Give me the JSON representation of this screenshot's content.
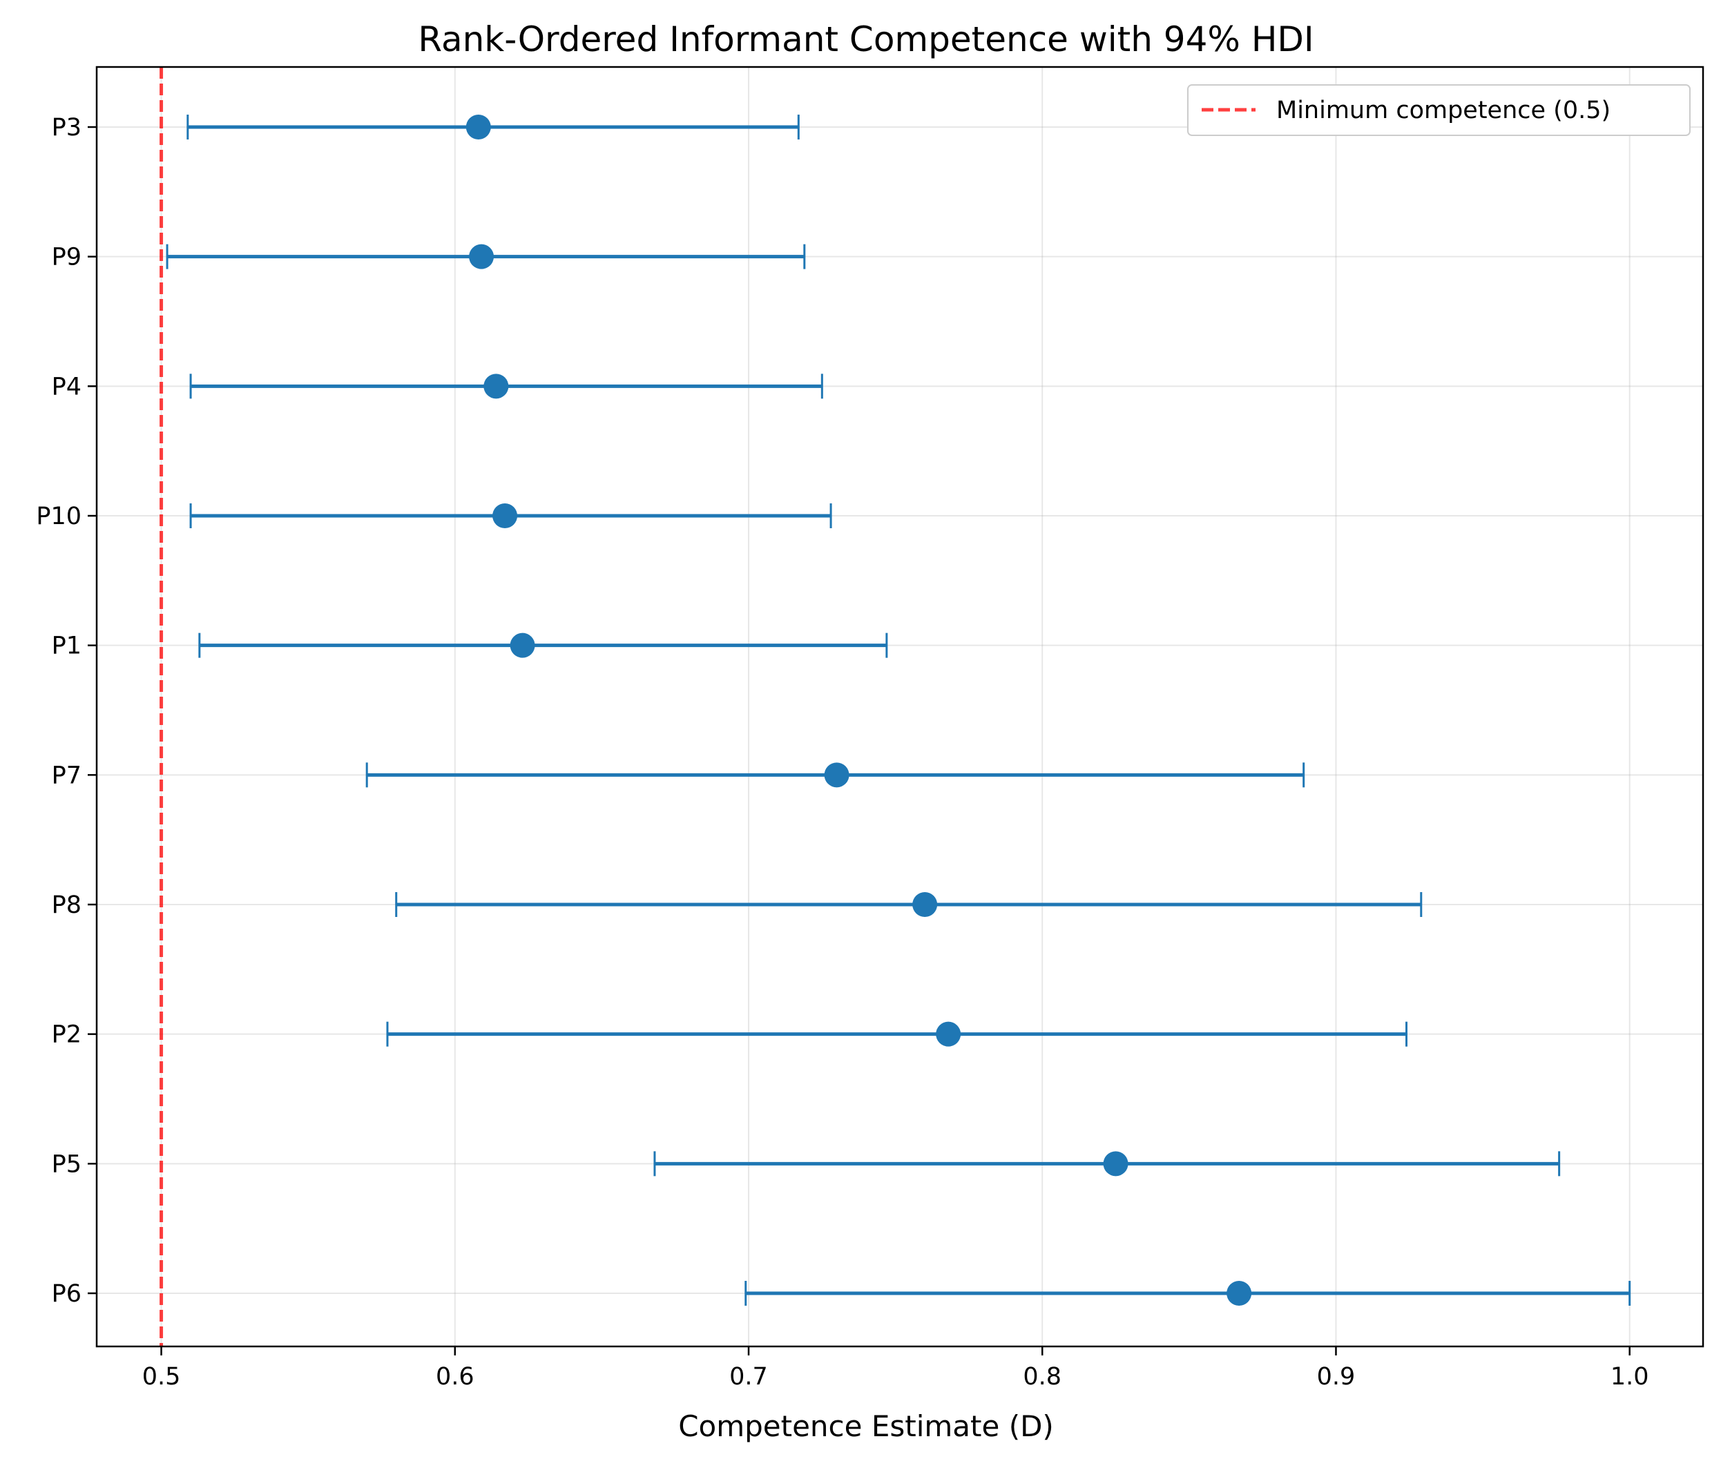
{
  "chart_data": {
    "type": "errorbar",
    "orientation": "horizontal",
    "title": "Rank-Ordered Informant Competence with 94% HDI",
    "xlabel": "Competence Estimate (D)",
    "ylabel": "",
    "xlim": [
      0.478,
      1.025
    ],
    "xticks": [
      0.5,
      0.6,
      0.7,
      0.8,
      0.9,
      1.0
    ],
    "xtick_labels": [
      "0.5",
      "0.6",
      "0.7",
      "0.8",
      "0.9",
      "1.0"
    ],
    "grid": true,
    "legend_position": "top-right",
    "series": [
      {
        "name": "",
        "color": "#1f77b4",
        "points": [
          {
            "label": "P3",
            "estimate": 0.608,
            "hdi_low": 0.509,
            "hdi_high": 0.717
          },
          {
            "label": "P9",
            "estimate": 0.609,
            "hdi_low": 0.502,
            "hdi_high": 0.719
          },
          {
            "label": "P4",
            "estimate": 0.614,
            "hdi_low": 0.51,
            "hdi_high": 0.725
          },
          {
            "label": "P10",
            "estimate": 0.617,
            "hdi_low": 0.51,
            "hdi_high": 0.728
          },
          {
            "label": "P1",
            "estimate": 0.623,
            "hdi_low": 0.513,
            "hdi_high": 0.747
          },
          {
            "label": "P7",
            "estimate": 0.73,
            "hdi_low": 0.57,
            "hdi_high": 0.889
          },
          {
            "label": "P8",
            "estimate": 0.76,
            "hdi_low": 0.58,
            "hdi_high": 0.929
          },
          {
            "label": "P2",
            "estimate": 0.768,
            "hdi_low": 0.577,
            "hdi_high": 0.924
          },
          {
            "label": "P5",
            "estimate": 0.825,
            "hdi_low": 0.668,
            "hdi_high": 0.976
          },
          {
            "label": "P6",
            "estimate": 0.867,
            "hdi_low": 0.699,
            "hdi_high": 1.0
          }
        ]
      }
    ],
    "reference_line": {
      "value": 0.5,
      "label": "Minimum competence (0.5)",
      "color": "#ff0000",
      "style": "dashed"
    }
  }
}
